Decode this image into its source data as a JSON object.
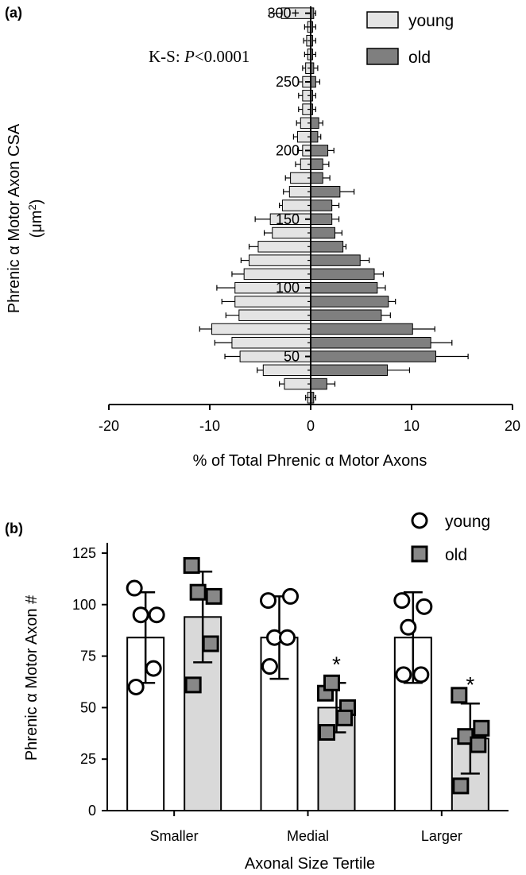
{
  "chart_data": [
    {
      "panel": "(a)",
      "type": "bar",
      "orientation": "horizontal",
      "title": "",
      "xlabel": "% of Total Phrenic α Motor Axons",
      "ylabel_line1": "Phrenic α Motor Axon CSA",
      "ylabel_line2_base": "(μm",
      "ylabel_line2_sup": "2",
      "ylabel_line2_close": ")",
      "xlim": [
        -20,
        20
      ],
      "xticks": [
        "-20",
        "-10",
        "0",
        "10",
        "20"
      ],
      "ylim": [
        15,
        305
      ],
      "yticks": [
        {
          "value": 50,
          "label": "50"
        },
        {
          "value": 100,
          "label": "100"
        },
        {
          "value": 150,
          "label": "150"
        },
        {
          "value": 200,
          "label": "200"
        },
        {
          "value": 250,
          "label": "250"
        },
        {
          "value": 300,
          "label": "300+"
        }
      ],
      "annotation_prefix": "K-S: ",
      "annotation_p": "P",
      "annotation_suffix": "<0.0001",
      "legend": [
        "young",
        "old"
      ],
      "bin_centers": [
        20,
        30,
        40,
        50,
        60,
        70,
        80,
        90,
        100,
        110,
        120,
        130,
        140,
        150,
        160,
        170,
        180,
        190,
        200,
        210,
        220,
        230,
        240,
        250,
        260,
        270,
        280,
        290,
        300
      ],
      "series": [
        {
          "name": "young",
          "color": "#e4e4e4",
          "values": [
            -0.3,
            -2.6,
            -4.7,
            -7.0,
            -7.8,
            -9.8,
            -7.1,
            -7.5,
            -7.5,
            -6.6,
            -6.1,
            -5.2,
            -3.8,
            -4.0,
            -2.8,
            -2.1,
            -2.0,
            -1.0,
            -0.8,
            -1.3,
            -1.0,
            -0.8,
            -0.8,
            -0.8,
            -0.5,
            -0.3,
            -0.4,
            -0.3,
            -2.9
          ],
          "errors": [
            0.2,
            0.5,
            0.6,
            1.5,
            1.7,
            1.2,
            1.3,
            1.3,
            1.8,
            1.2,
            0.8,
            0.9,
            0.8,
            1.5,
            0.3,
            0.6,
            0.5,
            0.5,
            0.5,
            0.4,
            0.4,
            0.4,
            0.4,
            0.4,
            0.3,
            0.3,
            0.3,
            0.3,
            1.2
          ]
        },
        {
          "name": "old",
          "color": "#7f7f7f",
          "values": [
            0.3,
            1.6,
            7.6,
            12.4,
            11.9,
            10.1,
            7.0,
            7.7,
            6.6,
            6.3,
            4.9,
            3.2,
            2.4,
            2.1,
            2.1,
            2.9,
            1.2,
            1.2,
            1.7,
            0.7,
            0.8,
            0.2,
            0.2,
            0.5,
            0.3,
            0.2,
            0.2,
            0.2,
            0.3
          ]
        },
        {
          "name": "old_errors",
          "values": [
            0.2,
            0.8,
            2.2,
            3.2,
            2.1,
            2.2,
            0.9,
            0.7,
            0.8,
            0.9,
            0.9,
            0.3,
            0.7,
            0.7,
            0.7,
            1.4,
            0.7,
            0.6,
            0.6,
            0.3,
            0.4,
            0.3,
            0.3,
            0.4,
            0.4,
            0.3,
            0.3,
            0.3,
            0.2
          ]
        }
      ]
    },
    {
      "panel": "(b)",
      "type": "bar",
      "title": "",
      "xlabel": "Axonal Size Tertile",
      "ylabel": "Phrenic α Motor Axon #",
      "ylim": [
        0,
        130
      ],
      "yticks": [
        "0",
        "25",
        "50",
        "75",
        "100",
        "125"
      ],
      "categories": [
        "Smaller",
        "Medial",
        "Larger"
      ],
      "legend": [
        "young",
        "old"
      ],
      "significance_marker": "*",
      "series": [
        {
          "name": "young",
          "color": "#ffffff",
          "marker": "circle",
          "means": [
            84,
            84,
            84
          ],
          "sd": [
            22,
            20,
            22
          ],
          "points": [
            [
              108,
              95,
              95,
              69,
              60
            ],
            [
              102,
              104,
              84,
              84,
              70
            ],
            [
              102,
              99,
              89,
              66,
              66
            ]
          ],
          "significant": [
            false,
            false,
            false
          ]
        },
        {
          "name": "old",
          "color": "#d9d9d9",
          "marker_color": "#888888",
          "marker": "square",
          "means": [
            94,
            50,
            35
          ],
          "sd": [
            22,
            12,
            17
          ],
          "points": [
            [
              119,
              104,
              106,
              81,
              61
            ],
            [
              57,
              50,
              62,
              45,
              38
            ],
            [
              56,
              40,
              36,
              32,
              12
            ]
          ],
          "significant": [
            false,
            true,
            true
          ]
        }
      ]
    }
  ]
}
